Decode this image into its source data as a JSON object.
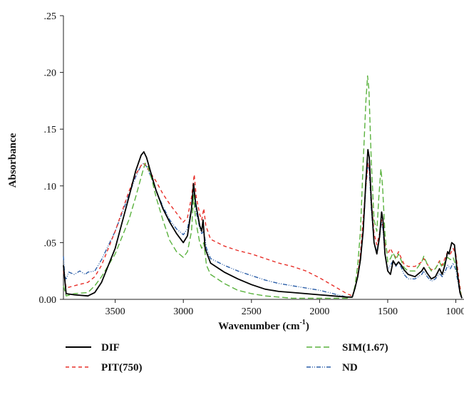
{
  "chart_data": {
    "type": "line",
    "xlabel": "Wavenumber (cm",
    "xlabel_sup": "-1",
    "xlabel_close": ")",
    "ylabel": "Absorbance",
    "xlim": [
      3880,
      940
    ],
    "ylim": [
      0,
      0.25
    ],
    "x_reversed": true,
    "x_ticks": [
      3500,
      3000,
      2500,
      2000,
      1500,
      1000
    ],
    "x_tick_labels": [
      "3500",
      "3000",
      "2500",
      "2000",
      "1500",
      "1000"
    ],
    "y_ticks": [
      0,
      0.05,
      0.1,
      0.15,
      0.2,
      0.25
    ],
    "y_tick_labels": [
      "0.00",
      ".05",
      ".10",
      ".15",
      ".20",
      ".25"
    ],
    "grid": false,
    "legend_position": "bottom",
    "series": [
      {
        "name": "DIF",
        "color": "#000000",
        "dash": "solid",
        "points": [
          [
            3880,
            0.03
          ],
          [
            3860,
            0.005
          ],
          [
            3800,
            0.004
          ],
          [
            3700,
            0.003
          ],
          [
            3650,
            0.006
          ],
          [
            3600,
            0.015
          ],
          [
            3500,
            0.045
          ],
          [
            3400,
            0.09
          ],
          [
            3350,
            0.113
          ],
          [
            3310,
            0.127
          ],
          [
            3290,
            0.13
          ],
          [
            3270,
            0.125
          ],
          [
            3230,
            0.108
          ],
          [
            3200,
            0.096
          ],
          [
            3150,
            0.08
          ],
          [
            3100,
            0.068
          ],
          [
            3050,
            0.058
          ],
          [
            3000,
            0.05
          ],
          [
            2970,
            0.056
          ],
          [
            2940,
            0.08
          ],
          [
            2925,
            0.102
          ],
          [
            2910,
            0.085
          ],
          [
            2880,
            0.065
          ],
          [
            2865,
            0.06
          ],
          [
            2855,
            0.07
          ],
          [
            2840,
            0.045
          ],
          [
            2800,
            0.032
          ],
          [
            2700,
            0.024
          ],
          [
            2600,
            0.018
          ],
          [
            2500,
            0.013
          ],
          [
            2400,
            0.009
          ],
          [
            2300,
            0.007
          ],
          [
            2200,
            0.006
          ],
          [
            2100,
            0.005
          ],
          [
            2000,
            0.004
          ],
          [
            1900,
            0.003
          ],
          [
            1800,
            0.002
          ],
          [
            1760,
            0.002
          ],
          [
            1740,
            0.01
          ],
          [
            1720,
            0.02
          ],
          [
            1700,
            0.035
          ],
          [
            1680,
            0.06
          ],
          [
            1660,
            0.105
          ],
          [
            1645,
            0.132
          ],
          [
            1635,
            0.125
          ],
          [
            1620,
            0.085
          ],
          [
            1600,
            0.05
          ],
          [
            1580,
            0.04
          ],
          [
            1560,
            0.055
          ],
          [
            1545,
            0.077
          ],
          [
            1535,
            0.07
          ],
          [
            1520,
            0.04
          ],
          [
            1500,
            0.025
          ],
          [
            1480,
            0.022
          ],
          [
            1460,
            0.034
          ],
          [
            1440,
            0.03
          ],
          [
            1420,
            0.033
          ],
          [
            1400,
            0.03
          ],
          [
            1380,
            0.026
          ],
          [
            1350,
            0.022
          ],
          [
            1300,
            0.02
          ],
          [
            1250,
            0.025
          ],
          [
            1235,
            0.028
          ],
          [
            1210,
            0.023
          ],
          [
            1180,
            0.018
          ],
          [
            1150,
            0.02
          ],
          [
            1120,
            0.027
          ],
          [
            1100,
            0.022
          ],
          [
            1080,
            0.03
          ],
          [
            1060,
            0.042
          ],
          [
            1050,
            0.04
          ],
          [
            1030,
            0.05
          ],
          [
            1010,
            0.048
          ],
          [
            990,
            0.025
          ],
          [
            970,
            0.006
          ],
          [
            955,
            0.001
          ]
        ]
      },
      {
        "name": "PIT(750)",
        "color": "#e8302a",
        "dash": "5,4",
        "points": [
          [
            3880,
            0.025
          ],
          [
            3860,
            0.01
          ],
          [
            3800,
            0.012
          ],
          [
            3700,
            0.015
          ],
          [
            3650,
            0.02
          ],
          [
            3600,
            0.03
          ],
          [
            3500,
            0.06
          ],
          [
            3400,
            0.095
          ],
          [
            3350,
            0.11
          ],
          [
            3300,
            0.12
          ],
          [
            3280,
            0.119
          ],
          [
            3250,
            0.113
          ],
          [
            3200,
            0.104
          ],
          [
            3150,
            0.093
          ],
          [
            3100,
            0.084
          ],
          [
            3050,
            0.076
          ],
          [
            3000,
            0.068
          ],
          [
            2970,
            0.072
          ],
          [
            2940,
            0.09
          ],
          [
            2920,
            0.11
          ],
          [
            2905,
            0.09
          ],
          [
            2880,
            0.075
          ],
          [
            2865,
            0.07
          ],
          [
            2850,
            0.08
          ],
          [
            2835,
            0.065
          ],
          [
            2800,
            0.053
          ],
          [
            2700,
            0.047
          ],
          [
            2600,
            0.043
          ],
          [
            2500,
            0.04
          ],
          [
            2400,
            0.036
          ],
          [
            2300,
            0.032
          ],
          [
            2200,
            0.029
          ],
          [
            2100,
            0.025
          ],
          [
            2000,
            0.019
          ],
          [
            1900,
            0.012
          ],
          [
            1800,
            0.005
          ],
          [
            1760,
            0.003
          ],
          [
            1740,
            0.01
          ],
          [
            1720,
            0.022
          ],
          [
            1700,
            0.04
          ],
          [
            1680,
            0.07
          ],
          [
            1660,
            0.1
          ],
          [
            1645,
            0.12
          ],
          [
            1635,
            0.117
          ],
          [
            1620,
            0.088
          ],
          [
            1600,
            0.058
          ],
          [
            1580,
            0.048
          ],
          [
            1560,
            0.058
          ],
          [
            1545,
            0.07
          ],
          [
            1535,
            0.064
          ],
          [
            1520,
            0.048
          ],
          [
            1500,
            0.04
          ],
          [
            1480,
            0.045
          ],
          [
            1460,
            0.04
          ],
          [
            1440,
            0.037
          ],
          [
            1420,
            0.042
          ],
          [
            1400,
            0.036
          ],
          [
            1380,
            0.031
          ],
          [
            1350,
            0.029
          ],
          [
            1300,
            0.029
          ],
          [
            1250,
            0.033
          ],
          [
            1235,
            0.036
          ],
          [
            1210,
            0.031
          ],
          [
            1180,
            0.026
          ],
          [
            1150,
            0.027
          ],
          [
            1120,
            0.034
          ],
          [
            1100,
            0.03
          ],
          [
            1080,
            0.036
          ],
          [
            1060,
            0.042
          ],
          [
            1040,
            0.04
          ],
          [
            1020,
            0.045
          ],
          [
            1000,
            0.04
          ],
          [
            980,
            0.02
          ],
          [
            960,
            0.003
          ]
        ]
      },
      {
        "name": "SIM(1.67)",
        "color": "#5ab23e",
        "dash": "8,4",
        "points": [
          [
            3880,
            0.012
          ],
          [
            3860,
            0.003
          ],
          [
            3800,
            0.005
          ],
          [
            3700,
            0.006
          ],
          [
            3650,
            0.012
          ],
          [
            3600,
            0.02
          ],
          [
            3500,
            0.04
          ],
          [
            3400,
            0.07
          ],
          [
            3350,
            0.09
          ],
          [
            3300,
            0.112
          ],
          [
            3280,
            0.12
          ],
          [
            3260,
            0.117
          ],
          [
            3230,
            0.105
          ],
          [
            3200,
            0.09
          ],
          [
            3150,
            0.07
          ],
          [
            3100,
            0.052
          ],
          [
            3050,
            0.042
          ],
          [
            3000,
            0.037
          ],
          [
            2970,
            0.042
          ],
          [
            2940,
            0.06
          ],
          [
            2925,
            0.092
          ],
          [
            2910,
            0.07
          ],
          [
            2880,
            0.05
          ],
          [
            2865,
            0.045
          ],
          [
            2850,
            0.05
          ],
          [
            2830,
            0.03
          ],
          [
            2800,
            0.022
          ],
          [
            2700,
            0.014
          ],
          [
            2600,
            0.008
          ],
          [
            2500,
            0.005
          ],
          [
            2400,
            0.003
          ],
          [
            2300,
            0.002
          ],
          [
            2200,
            0.001
          ],
          [
            2100,
            0.001
          ],
          [
            2000,
            0.001
          ],
          [
            1900,
            0.001
          ],
          [
            1800,
            0.001
          ],
          [
            1760,
            0.002
          ],
          [
            1740,
            0.012
          ],
          [
            1720,
            0.03
          ],
          [
            1700,
            0.06
          ],
          [
            1680,
            0.12
          ],
          [
            1660,
            0.175
          ],
          [
            1648,
            0.197
          ],
          [
            1638,
            0.185
          ],
          [
            1620,
            0.12
          ],
          [
            1600,
            0.07
          ],
          [
            1580,
            0.06
          ],
          [
            1565,
            0.09
          ],
          [
            1550,
            0.115
          ],
          [
            1538,
            0.1
          ],
          [
            1520,
            0.058
          ],
          [
            1500,
            0.033
          ],
          [
            1480,
            0.036
          ],
          [
            1460,
            0.041
          ],
          [
            1440,
            0.035
          ],
          [
            1420,
            0.04
          ],
          [
            1400,
            0.034
          ],
          [
            1380,
            0.028
          ],
          [
            1350,
            0.025
          ],
          [
            1300,
            0.025
          ],
          [
            1250,
            0.033
          ],
          [
            1235,
            0.038
          ],
          [
            1210,
            0.031
          ],
          [
            1180,
            0.025
          ],
          [
            1150,
            0.027
          ],
          [
            1120,
            0.033
          ],
          [
            1100,
            0.028
          ],
          [
            1080,
            0.033
          ],
          [
            1060,
            0.037
          ],
          [
            1040,
            0.035
          ],
          [
            1020,
            0.037
          ],
          [
            1000,
            0.03
          ],
          [
            980,
            0.015
          ],
          [
            960,
            0.003
          ]
        ]
      },
      {
        "name": "ND",
        "color": "#2c5fa8",
        "dash": "6,2,1,2,1,2",
        "points": [
          [
            3880,
            0.038
          ],
          [
            3870,
            0.02
          ],
          [
            3860,
            0.018
          ],
          [
            3840,
            0.024
          ],
          [
            3800,
            0.022
          ],
          [
            3760,
            0.025
          ],
          [
            3720,
            0.022
          ],
          [
            3700,
            0.024
          ],
          [
            3650,
            0.025
          ],
          [
            3600,
            0.035
          ],
          [
            3500,
            0.06
          ],
          [
            3400,
            0.092
          ],
          [
            3350,
            0.108
          ],
          [
            3310,
            0.118
          ],
          [
            3290,
            0.12
          ],
          [
            3270,
            0.117
          ],
          [
            3230,
            0.106
          ],
          [
            3200,
            0.096
          ],
          [
            3150,
            0.082
          ],
          [
            3100,
            0.07
          ],
          [
            3050,
            0.062
          ],
          [
            3000,
            0.057
          ],
          [
            2970,
            0.062
          ],
          [
            2940,
            0.08
          ],
          [
            2925,
            0.1
          ],
          [
            2910,
            0.08
          ],
          [
            2880,
            0.063
          ],
          [
            2865,
            0.058
          ],
          [
            2850,
            0.06
          ],
          [
            2830,
            0.045
          ],
          [
            2800,
            0.036
          ],
          [
            2700,
            0.03
          ],
          [
            2600,
            0.025
          ],
          [
            2500,
            0.021
          ],
          [
            2400,
            0.017
          ],
          [
            2300,
            0.014
          ],
          [
            2200,
            0.012
          ],
          [
            2100,
            0.01
          ],
          [
            2000,
            0.008
          ],
          [
            1900,
            0.005
          ],
          [
            1800,
            0.002
          ],
          [
            1760,
            0.002
          ],
          [
            1740,
            0.01
          ],
          [
            1720,
            0.02
          ],
          [
            1700,
            0.035
          ],
          [
            1680,
            0.06
          ],
          [
            1660,
            0.1
          ],
          [
            1645,
            0.12
          ],
          [
            1635,
            0.114
          ],
          [
            1620,
            0.08
          ],
          [
            1600,
            0.05
          ],
          [
            1580,
            0.042
          ],
          [
            1560,
            0.055
          ],
          [
            1545,
            0.068
          ],
          [
            1535,
            0.062
          ],
          [
            1520,
            0.04
          ],
          [
            1500,
            0.026
          ],
          [
            1480,
            0.03
          ],
          [
            1460,
            0.034
          ],
          [
            1440,
            0.029
          ],
          [
            1420,
            0.033
          ],
          [
            1400,
            0.028
          ],
          [
            1380,
            0.022
          ],
          [
            1350,
            0.018
          ],
          [
            1300,
            0.018
          ],
          [
            1250,
            0.022
          ],
          [
            1235,
            0.025
          ],
          [
            1210,
            0.02
          ],
          [
            1180,
            0.016
          ],
          [
            1150,
            0.018
          ],
          [
            1120,
            0.023
          ],
          [
            1100,
            0.02
          ],
          [
            1080,
            0.024
          ],
          [
            1060,
            0.03
          ],
          [
            1040,
            0.027
          ],
          [
            1020,
            0.032
          ],
          [
            1000,
            0.026
          ],
          [
            980,
            0.012
          ],
          [
            960,
            0.002
          ]
        ]
      }
    ]
  }
}
